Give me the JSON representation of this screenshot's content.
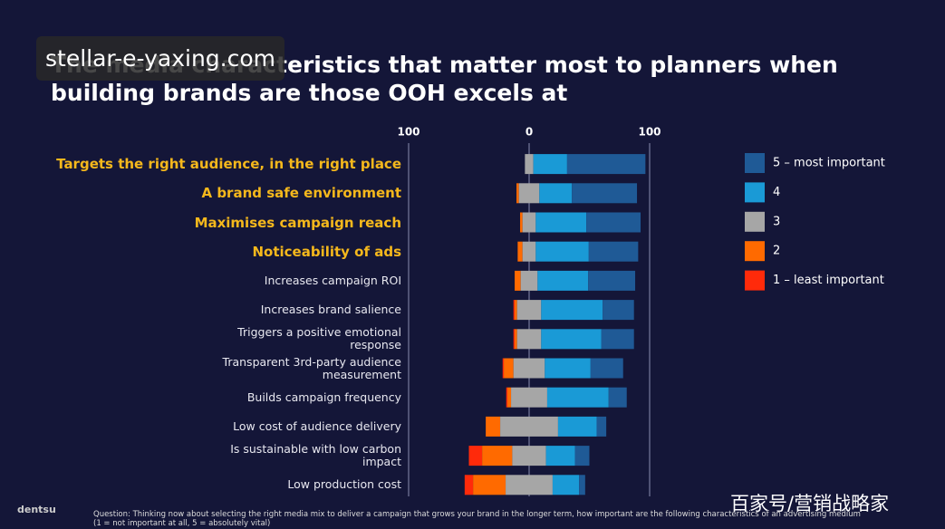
{
  "chart_data": {
    "type": "diverging_bar",
    "title": "The media characteristics that matter most to planners when building brands are those OOH excels at",
    "categories": [
      "Targets the right audience, in the right place",
      "A brand safe environment",
      "Maximises campaign reach",
      "Noticeability of ads",
      "Increases campaign ROI",
      "Increases brand salience",
      "Triggers a positive emotional response",
      "Transparent 3rd-party audience measurement",
      "Builds campaign frequency",
      "Low cost of audience delivery",
      "Is sustainable with low carbon impact",
      "Low production cost"
    ],
    "highlighted": [
      true,
      true,
      true,
      true,
      false,
      false,
      false,
      false,
      false,
      false,
      false,
      false
    ],
    "series": [
      {
        "name": "5 – most important",
        "color": "#1f5a96",
        "values": [
          65,
          54,
          45,
          41,
          39,
          26,
          27,
          27,
          15,
          8,
          12,
          5
        ]
      },
      {
        "name": "4",
        "color": "#1a9ad6",
        "values": [
          28,
          27,
          42,
          44,
          42,
          51,
          50,
          38,
          51,
          32,
          24,
          22
        ]
      },
      {
        "name": "3",
        "color": "#a6a6a6",
        "values": [
          7,
          17,
          11,
          11,
          14,
          20,
          20,
          26,
          30,
          48,
          28,
          39
        ]
      },
      {
        "name": "2",
        "color": "#ff6a00",
        "values": [
          0,
          2,
          2,
          4,
          5,
          2,
          2,
          8,
          3,
          12,
          25,
          27
        ]
      },
      {
        "name": "1 – least important",
        "color": "#ff2a0a",
        "values": [
          0,
          0,
          0,
          0,
          0,
          1,
          1,
          1,
          1,
          0,
          11,
          7
        ]
      }
    ],
    "xlim": [
      -100,
      100
    ],
    "xticks": [
      {
        "value": -100,
        "label": "100"
      },
      0,
      100
    ],
    "grid": true,
    "watermark": "stellar-e-yaxing.com",
    "brand": "dentsu",
    "footnote": "Question: Thinking now about selecting the right media mix to deliver a campaign that grows your brand in the longer term, how important are the following characteristics of an advertising medium (1 = not important at all, 5 = absolutely vital)",
    "source_mark": "百家号/营销战略家"
  }
}
